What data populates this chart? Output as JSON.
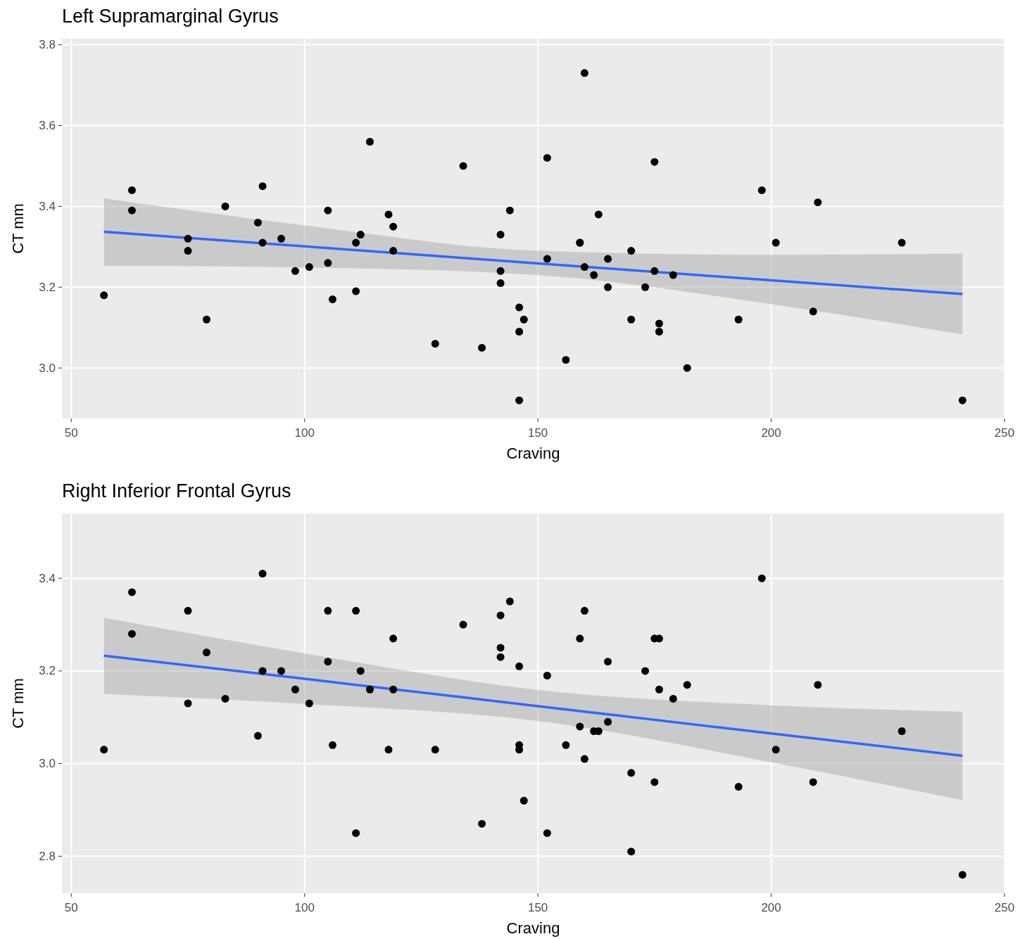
{
  "chart_data": [
    {
      "type": "scatter",
      "title": "Left Supramarginal Gyrus",
      "xlabel": "Craving",
      "ylabel": "CT mm",
      "xlim": [
        48,
        250
      ],
      "xticks": [
        50,
        100,
        150,
        200,
        250
      ],
      "ylim": [
        2.875,
        3.815
      ],
      "yticks": [
        {
          "value": 3.0,
          "label": "3.0"
        },
        {
          "value": 3.2,
          "label": "3.2"
        },
        {
          "value": 3.4,
          "label": "3.4"
        },
        {
          "value": 3.6,
          "label": "3.6"
        },
        {
          "value": 3.8,
          "label": "3.8"
        }
      ],
      "grid": true,
      "marker": "circle",
      "series": [
        {
          "color": "#000000",
          "x": [
            57,
            63,
            63,
            75,
            75,
            79,
            83,
            90,
            91,
            91,
            95,
            98,
            101,
            105,
            105,
            106,
            111,
            111,
            112,
            114,
            118,
            119,
            119,
            128,
            134,
            138,
            142,
            142,
            142,
            144,
            146,
            147,
            146,
            146,
            152,
            152,
            156,
            159,
            159,
            160,
            160,
            162,
            163,
            165,
            165,
            170,
            170,
            173,
            175,
            175,
            176,
            176,
            179,
            182,
            193,
            198,
            201,
            209,
            210,
            228,
            241
          ],
          "values": [
            3.18,
            3.44,
            3.39,
            3.32,
            3.29,
            3.12,
            3.4,
            3.36,
            3.45,
            3.31,
            3.32,
            3.24,
            3.25,
            3.39,
            3.26,
            3.17,
            3.31,
            3.19,
            3.33,
            3.56,
            3.38,
            3.35,
            3.29,
            3.06,
            3.5,
            3.05,
            3.33,
            3.24,
            3.21,
            3.39,
            3.15,
            3.12,
            3.09,
            2.92,
            3.52,
            3.27,
            3.02,
            3.31,
            3.31,
            3.73,
            3.25,
            3.23,
            3.38,
            3.27,
            3.2,
            3.29,
            3.12,
            3.2,
            3.51,
            3.24,
            3.11,
            3.09,
            3.23,
            3.0,
            3.12,
            3.44,
            3.31,
            3.14,
            3.41,
            3.31,
            2.92
          ]
        },
        {
          "type": "line",
          "color": "#3366ff",
          "marker": "none",
          "x": [
            57,
            100,
            150,
            200,
            241
          ],
          "values": [
            3.337,
            3.301,
            3.259,
            3.217,
            3.183
          ],
          "lower": [
            3.253,
            3.249,
            3.23,
            3.158,
            3.083
          ],
          "upper": [
            3.42,
            3.353,
            3.29,
            3.28,
            3.283
          ]
        }
      ]
    },
    {
      "type": "scatter",
      "title": "Right Inferior Frontal Gyrus",
      "xlabel": "Craving",
      "ylabel": "CT mm",
      "xlim": [
        48,
        250
      ],
      "xticks": [
        50,
        100,
        150,
        200,
        250
      ],
      "ylim": [
        2.72,
        3.54
      ],
      "yticks": [
        {
          "value": 2.8,
          "label": "2.8"
        },
        {
          "value": 3.0,
          "label": "3.0"
        },
        {
          "value": 3.2,
          "label": "3.2"
        },
        {
          "value": 3.4,
          "label": "3.4"
        }
      ],
      "grid": true,
      "marker": "circle",
      "series": [
        {
          "color": "#000000",
          "x": [
            57,
            63,
            63,
            75,
            75,
            79,
            83,
            90,
            91,
            91,
            95,
            98,
            101,
            105,
            105,
            106,
            111,
            111,
            112,
            114,
            118,
            119,
            119,
            128,
            134,
            138,
            142,
            142,
            142,
            144,
            146,
            146,
            146,
            147,
            152,
            152,
            156,
            159,
            159,
            160,
            160,
            162,
            163,
            165,
            165,
            170,
            170,
            173,
            175,
            176,
            175,
            176,
            179,
            182,
            193,
            198,
            201,
            209,
            210,
            228,
            241
          ],
          "values": [
            3.03,
            3.37,
            3.28,
            3.33,
            3.13,
            3.24,
            3.14,
            3.06,
            3.41,
            3.2,
            3.2,
            3.16,
            3.13,
            3.33,
            3.22,
            3.04,
            3.33,
            2.85,
            3.2,
            3.16,
            3.03,
            3.27,
            3.16,
            3.03,
            3.3,
            2.87,
            3.32,
            3.25,
            3.23,
            3.35,
            3.21,
            3.04,
            3.03,
            2.92,
            3.19,
            2.85,
            3.04,
            3.27,
            3.08,
            3.33,
            3.01,
            3.07,
            3.07,
            3.22,
            3.09,
            2.98,
            2.81,
            3.2,
            3.27,
            3.27,
            2.96,
            3.16,
            3.14,
            3.17,
            2.95,
            3.4,
            3.03,
            2.96,
            3.17,
            3.07,
            2.76
          ]
        },
        {
          "type": "line",
          "color": "#3366ff",
          "marker": "none",
          "x": [
            57,
            100,
            150,
            200,
            241
          ],
          "values": [
            3.233,
            3.183,
            3.124,
            3.065,
            3.017
          ],
          "lower": [
            3.15,
            3.129,
            3.092,
            3.003,
            2.921
          ],
          "upper": [
            3.315,
            3.238,
            3.159,
            3.126,
            3.112
          ]
        }
      ]
    }
  ]
}
